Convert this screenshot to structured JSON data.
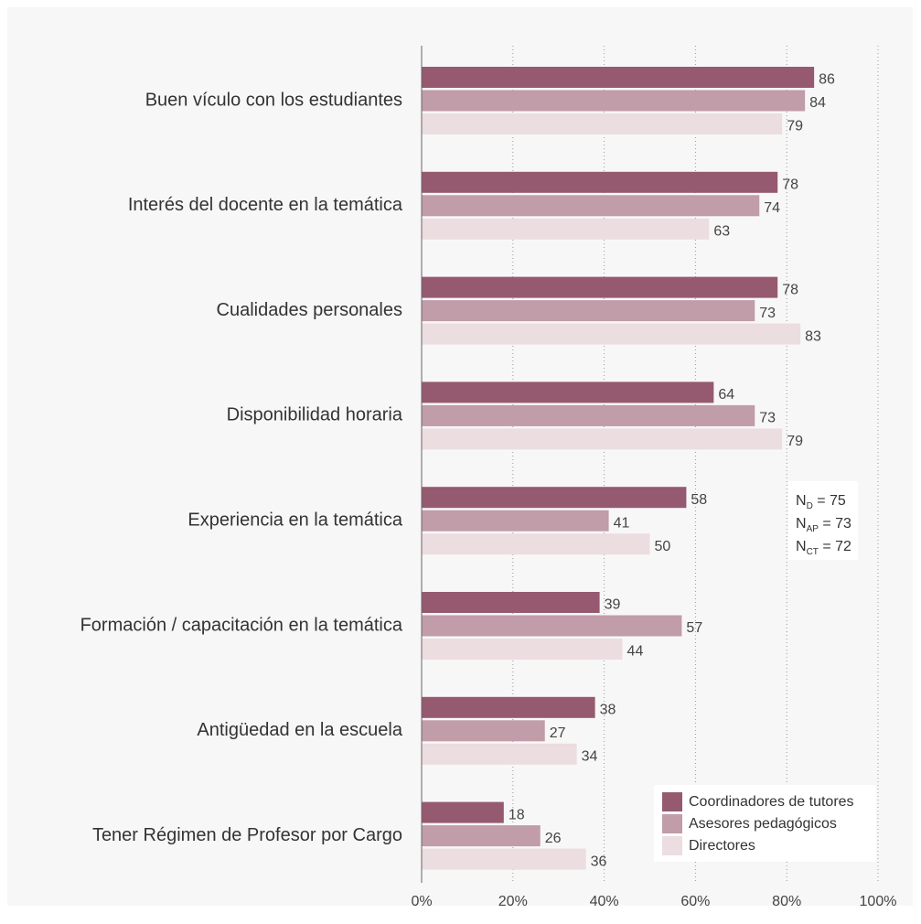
{
  "chart_data": {
    "type": "hbar",
    "categories": [
      "Buen vículo con los estudiantes",
      "Interés del docente en la temática",
      "Cualidades personales",
      "Disponibilidad horaria",
      "Experiencia en la temática",
      "Formación / capacitación en la temática",
      "Antigüedad en la escuela",
      "Tener Régimen de Profesor por Cargo"
    ],
    "series": [
      {
        "name": "Coordinadores de tutores",
        "color": "#955a70",
        "values": [
          86,
          78,
          78,
          64,
          58,
          39,
          38,
          18
        ]
      },
      {
        "name": "Asesores pedagógicos",
        "color": "#c19ca9",
        "values": [
          84,
          74,
          73,
          73,
          41,
          57,
          27,
          26
        ]
      },
      {
        "name": "Directores",
        "color": "#ecdde1",
        "values": [
          79,
          63,
          83,
          79,
          50,
          44,
          34,
          36
        ]
      }
    ],
    "xlim": [
      0,
      100
    ],
    "xticks": [
      {
        "value": 0,
        "label": "0%"
      },
      {
        "value": 20,
        "label": "20%"
      },
      {
        "value": 40,
        "label": "40%"
      },
      {
        "value": 60,
        "label": "60%"
      },
      {
        "value": 80,
        "label": "80%"
      },
      {
        "value": 100,
        "label": "100%"
      }
    ],
    "grid": true,
    "legend": "lower right",
    "annotations": [
      {
        "base": "N",
        "sub": "D",
        "text": " = 75"
      },
      {
        "base": "N",
        "sub": "AP",
        "text": " = 73"
      },
      {
        "base": "N",
        "sub": "CT",
        "text": " = 72"
      }
    ]
  }
}
